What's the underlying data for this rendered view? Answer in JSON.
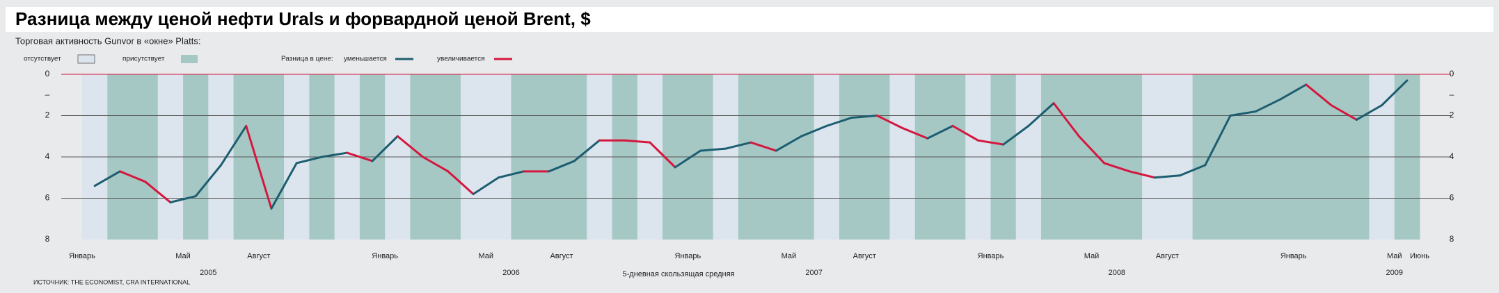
{
  "chart_data": {
    "type": "line",
    "title": "Разница между ценой нефти Urals и форвардной ценой Brent, $",
    "subtitle": "Торговая активность Gunvor в «окне» Platts:",
    "source": "ИСТОЧНИК: THE ECONOMIST, CRA INTERNATIONAL",
    "note": "5-дневная скользящая средняя",
    "activity": {
      "absent": {
        "label": "отсутствует",
        "color": "#dce5ee"
      },
      "present": {
        "label": "присутствует",
        "color": "#a5c8c5"
      },
      "values": [
        false,
        true,
        true,
        false,
        true,
        false,
        true,
        true,
        false,
        true,
        false,
        true,
        false,
        true,
        true,
        false,
        false,
        true,
        true,
        true,
        false,
        true,
        false,
        true,
        true,
        false,
        true,
        true,
        true,
        false,
        true,
        true,
        false,
        true,
        true,
        false,
        true,
        false,
        true,
        true,
        true,
        true,
        false,
        false,
        true,
        true,
        true,
        true,
        true,
        true,
        true,
        false,
        true
      ]
    },
    "legend": {
      "title": "Разница в цене:",
      "decreasing": {
        "label": "уменьшается",
        "color": "#1d5d70"
      },
      "increasing": {
        "label": "увеличивается",
        "color": "#d4173d"
      }
    },
    "x": [
      "2005-01",
      "2005-02",
      "2005-03",
      "2005-04",
      "2005-05",
      "2005-06",
      "2005-07",
      "2005-08",
      "2005-09",
      "2005-10",
      "2005-11",
      "2005-12",
      "2006-01",
      "2006-02",
      "2006-03",
      "2006-04",
      "2006-05",
      "2006-06",
      "2006-07",
      "2006-08",
      "2006-09",
      "2006-10",
      "2006-11",
      "2006-12",
      "2007-01",
      "2007-02",
      "2007-03",
      "2007-04",
      "2007-05",
      "2007-06",
      "2007-07",
      "2007-08",
      "2007-09",
      "2007-10",
      "2007-11",
      "2007-12",
      "2008-01",
      "2008-02",
      "2008-03",
      "2008-04",
      "2008-05",
      "2008-06",
      "2008-07",
      "2008-08",
      "2008-09",
      "2008-10",
      "2008-11",
      "2008-12",
      "2009-01",
      "2009-02",
      "2009-03",
      "2009-04",
      "2009-05"
    ],
    "values": [
      5.4,
      4.7,
      5.2,
      6.2,
      5.9,
      4.4,
      2.5,
      6.5,
      4.3,
      4.0,
      3.8,
      4.2,
      3.0,
      4.0,
      4.7,
      5.8,
      5.0,
      4.7,
      4.7,
      4.2,
      3.2,
      3.2,
      3.3,
      4.5,
      3.7,
      3.6,
      3.3,
      3.7,
      3.0,
      2.5,
      2.1,
      2.0,
      2.6,
      3.1,
      2.5,
      3.2,
      3.4,
      2.5,
      1.4,
      3.0,
      4.3,
      4.7,
      5.0,
      4.9,
      4.4,
      2.0,
      1.8,
      1.2,
      0.5,
      1.5,
      2.2,
      1.5,
      0.3
    ],
    "xlim": [
      "2005-01",
      "2009-06"
    ],
    "xticks": [
      {
        "value": "2005-01",
        "label": "Январь"
      },
      {
        "value": "2005-05",
        "label": "Май"
      },
      {
        "value": "2005-08",
        "label": "Август"
      },
      {
        "value": "2006-01",
        "label": "Январь"
      },
      {
        "value": "2006-05",
        "label": "Май"
      },
      {
        "value": "2006-08",
        "label": "Август"
      },
      {
        "value": "2007-01",
        "label": "Январь"
      },
      {
        "value": "2007-05",
        "label": "Май"
      },
      {
        "value": "2007-08",
        "label": "Август"
      },
      {
        "value": "2008-01",
        "label": "Январь"
      },
      {
        "value": "2008-05",
        "label": "Май"
      },
      {
        "value": "2008-08",
        "label": "Август"
      },
      {
        "value": "2009-01",
        "label": "Январь"
      },
      {
        "value": "2009-05",
        "label": "Май"
      },
      {
        "value": "2009-06",
        "label": "Июнь"
      }
    ],
    "year_labels": [
      {
        "value": "2005-06",
        "label": "2005"
      },
      {
        "value": "2006-06",
        "label": "2006"
      },
      {
        "value": "2007-06",
        "label": "2007"
      },
      {
        "value": "2008-06",
        "label": "2008"
      },
      {
        "value": "2009-05",
        "label": "2009"
      }
    ],
    "ylim": [
      0,
      8
    ],
    "y_reversed": true,
    "yticks": [
      0,
      {
        "value": 1,
        "label": "–"
      },
      2,
      4,
      6,
      8
    ],
    "grid": [
      0,
      2,
      4,
      6
    ],
    "zero_line_color": "#d4173d"
  }
}
